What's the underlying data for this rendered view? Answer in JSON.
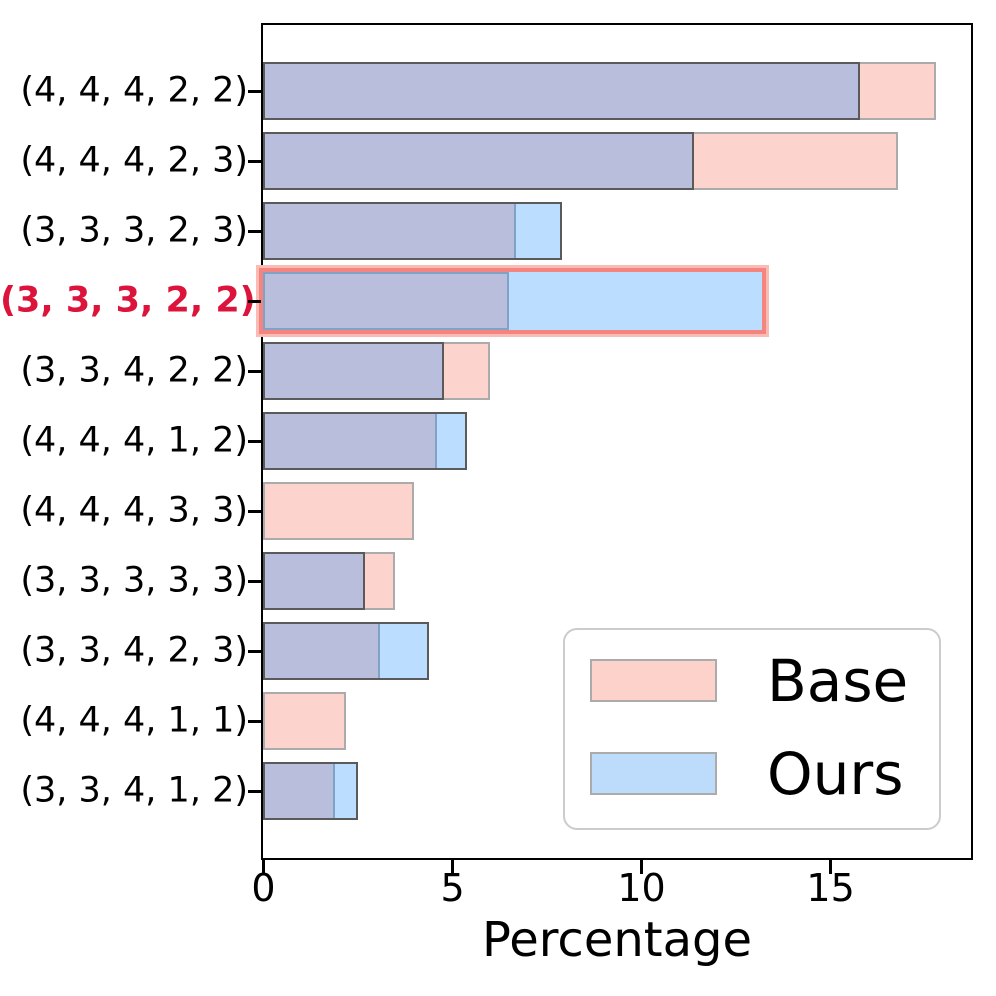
{
  "chart_data": {
    "type": "bar",
    "orientation": "horizontal",
    "xlabel": "Percentage",
    "xlim": [
      0,
      18.7
    ],
    "xticks": [
      {
        "value": 0,
        "label": "0"
      },
      {
        "value": 5,
        "label": "5"
      },
      {
        "value": 10,
        "label": "10"
      },
      {
        "value": 15,
        "label": "15"
      }
    ],
    "categories": [
      "(4, 4, 4, 2, 2)",
      "(4, 4, 4, 2, 3)",
      "(3, 3, 3, 2, 3)",
      "(3, 3, 3, 2, 2)",
      "(3, 3, 4, 2, 2)",
      "(4, 4, 4, 1, 2)",
      "(4, 4, 4, 3, 3)",
      "(3, 3, 3, 3, 3)",
      "(3, 3, 4, 2, 3)",
      "(4, 4, 4, 1, 1)",
      "(3, 3, 4, 1, 2)"
    ],
    "highlighted_category": "(3, 3, 3, 2, 2)",
    "series": [
      {
        "name": "Base",
        "fill": "rgba(250,128,114,0.35)",
        "edge": "#ababab",
        "values": [
          17.8,
          16.8,
          6.7,
          6.5,
          6.0,
          4.6,
          4.0,
          3.5,
          3.1,
          2.2,
          1.9
        ]
      },
      {
        "name": "Ours",
        "fill": "rgba(30,144,255,0.30)",
        "edge": "#5a5a5a",
        "values": [
          15.8,
          11.4,
          7.9,
          13.2,
          4.8,
          5.4,
          null,
          2.7,
          4.4,
          null,
          2.5
        ]
      }
    ],
    "legend": {
      "position": "lower-right",
      "entries": [
        {
          "label": "Base",
          "swatch_color": "#fcd2ca"
        },
        {
          "label": "Ours",
          "swatch_color": "#bddcfb"
        }
      ]
    },
    "colors": {
      "highlight_label": "#dc143c",
      "highlight_outline": "#f5837e",
      "overlap": "#bcbcd8",
      "axis": "#000000"
    },
    "grid": false
  }
}
